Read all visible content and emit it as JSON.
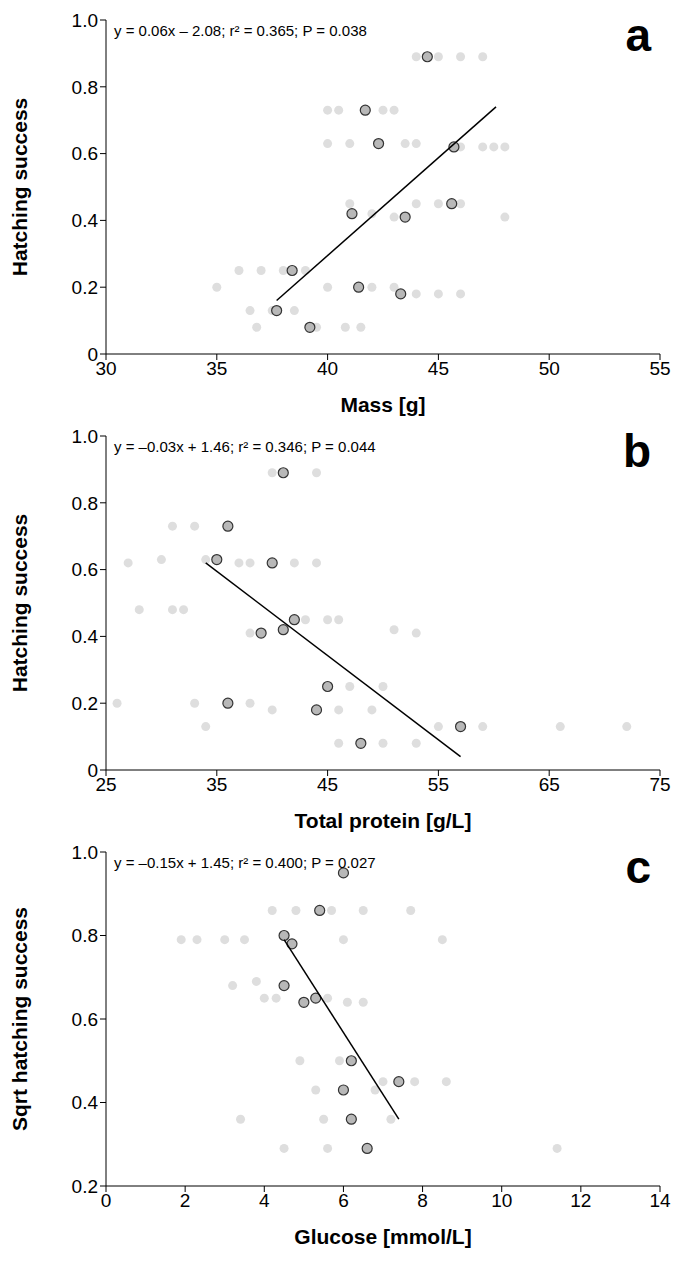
{
  "chart_data": [
    {
      "type": "scatter",
      "title": "a",
      "annotation": "y = 0.06x – 2.08; r² = 0.365; P = 0.038",
      "x_label": "Mass [g]",
      "y_label": "Hatching success",
      "xlim": [
        30,
        55
      ],
      "xticks": [
        30,
        35,
        40,
        45,
        50,
        55
      ],
      "ylim": [
        0,
        1
      ],
      "yticks": [
        0,
        0.2,
        0.4,
        0.6,
        0.8,
        {
          "value": 1,
          "label": "1.0"
        }
      ],
      "series": [
        {
          "type": "scatter",
          "marker": "circle",
          "color": "#dedede",
          "x": [
            44,
            45,
            46,
            47,
            40,
            40.5,
            42.5,
            43,
            40,
            41,
            43.5,
            44,
            46,
            47,
            48,
            47.5,
            41,
            44,
            45,
            46,
            48,
            42,
            43,
            36,
            37,
            38,
            39,
            35,
            40,
            42,
            43,
            44,
            45,
            46,
            36.5,
            37.5,
            38.5,
            36.8,
            39.5,
            40.8,
            41.5
          ],
          "values": [
            0.89,
            0.89,
            0.89,
            0.89,
            0.73,
            0.73,
            0.73,
            0.73,
            0.63,
            0.63,
            0.63,
            0.63,
            0.62,
            0.62,
            0.62,
            0.62,
            0.45,
            0.45,
            0.45,
            0.45,
            0.41,
            0.42,
            0.41,
            0.25,
            0.25,
            0.25,
            0.25,
            0.2,
            0.2,
            0.2,
            0.2,
            0.18,
            0.18,
            0.18,
            0.13,
            0.13,
            0.13,
            0.08,
            0.08,
            0.08,
            0.08
          ]
        },
        {
          "type": "scatter",
          "marker": "outlined_circle",
          "color": "#b8b8b8",
          "x": [
            44.5,
            41.7,
            42.3,
            45.7,
            45.6,
            41.1,
            43.5,
            38.4,
            41.4,
            43.3,
            37.7,
            39.2
          ],
          "values": [
            0.89,
            0.73,
            0.63,
            0.62,
            0.45,
            0.42,
            0.41,
            0.25,
            0.2,
            0.18,
            0.13,
            0.08
          ]
        },
        {
          "type": "line",
          "color": "#000000",
          "x": [
            37.7,
            47.6
          ],
          "values": [
            0.16,
            0.74
          ]
        }
      ]
    },
    {
      "type": "scatter",
      "title": "b",
      "annotation": "y = –0.03x + 1.46; r² = 0.346; P = 0.044",
      "x_label": "Total protein [g/L]",
      "y_label": "Hatching success",
      "xlim": [
        25,
        75
      ],
      "xticks": [
        25,
        35,
        45,
        55,
        65,
        75
      ],
      "ylim": [
        0,
        1
      ],
      "yticks": [
        0,
        0.2,
        0.4,
        0.6,
        0.8,
        {
          "value": 1,
          "label": "1.0"
        }
      ],
      "series": [
        {
          "type": "scatter",
          "marker": "circle",
          "color": "#dedede",
          "x": [
            27,
            30,
            31,
            33,
            28,
            31,
            32,
            34,
            37,
            38,
            42,
            44,
            40,
            44,
            43,
            45,
            46,
            51,
            53,
            38,
            26,
            33,
            38,
            40,
            46,
            49,
            47,
            50,
            34,
            55,
            59,
            66,
            72,
            46,
            50,
            53
          ],
          "values": [
            0.62,
            0.63,
            0.73,
            0.73,
            0.48,
            0.48,
            0.48,
            0.63,
            0.62,
            0.62,
            0.62,
            0.62,
            0.89,
            0.89,
            0.45,
            0.45,
            0.45,
            0.42,
            0.41,
            0.41,
            0.2,
            0.2,
            0.2,
            0.18,
            0.18,
            0.18,
            0.25,
            0.25,
            0.13,
            0.13,
            0.13,
            0.13,
            0.13,
            0.08,
            0.08,
            0.08
          ]
        },
        {
          "type": "scatter",
          "marker": "outlined_circle",
          "color": "#b8b8b8",
          "x": [
            41,
            36,
            35,
            40,
            42,
            39,
            41,
            45,
            36,
            44,
            57,
            48
          ],
          "values": [
            0.89,
            0.73,
            0.63,
            0.62,
            0.45,
            0.41,
            0.42,
            0.25,
            0.2,
            0.18,
            0.13,
            0.08
          ]
        },
        {
          "type": "line",
          "color": "#000000",
          "x": [
            34,
            57
          ],
          "values": [
            0.62,
            0.04
          ]
        }
      ]
    },
    {
      "type": "scatter",
      "title": "c",
      "annotation": "y = –0.15x + 1.45; r² = 0.400; P = 0.027",
      "x_label": "Glucose [mmol/L]",
      "y_label": "Sqrt hatching success",
      "xlim": [
        0,
        14
      ],
      "xticks": [
        0,
        2,
        4,
        6,
        8,
        10,
        12,
        14
      ],
      "ylim": [
        0.2,
        1
      ],
      "yticks": [
        0.2,
        0.4,
        0.6,
        0.8,
        {
          "value": 1,
          "label": "1.0"
        }
      ],
      "series": [
        {
          "type": "scatter",
          "marker": "circle",
          "color": "#dedede",
          "x": [
            1.9,
            2.3,
            3.0,
            4.2,
            4.8,
            5.7,
            6.5,
            7.7,
            3.2,
            3.8,
            4.0,
            4.3,
            5.6,
            6.1,
            6.5,
            3.5,
            6.0,
            8.5,
            4.9,
            5.9,
            7.0,
            7.8,
            8.6,
            5.3,
            6.8,
            3.4,
            5.5,
            7.2,
            4.5,
            5.6,
            11.4
          ],
          "values": [
            0.79,
            0.79,
            0.79,
            0.86,
            0.86,
            0.86,
            0.86,
            0.86,
            0.68,
            0.69,
            0.65,
            0.65,
            0.65,
            0.64,
            0.64,
            0.79,
            0.79,
            0.79,
            0.5,
            0.5,
            0.45,
            0.45,
            0.45,
            0.43,
            0.43,
            0.36,
            0.36,
            0.36,
            0.29,
            0.29,
            0.29
          ]
        },
        {
          "type": "scatter",
          "marker": "outlined_circle",
          "color": "#b8b8b8",
          "x": [
            6.0,
            5.4,
            4.5,
            4.7,
            4.5,
            5.3,
            5.0,
            6.2,
            7.4,
            6.0,
            6.2,
            6.6
          ],
          "values": [
            0.95,
            0.86,
            0.8,
            0.78,
            0.68,
            0.65,
            0.64,
            0.5,
            0.45,
            0.43,
            0.36,
            0.29
          ]
        },
        {
          "type": "line",
          "color": "#000000",
          "x": [
            4.5,
            7.4
          ],
          "values": [
            0.79,
            0.36
          ]
        }
      ]
    }
  ]
}
